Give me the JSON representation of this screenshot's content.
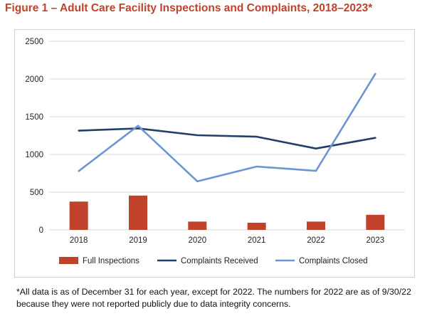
{
  "title": "Figure 1 – Adult Care Facility Inspections and Complaints, 2018–2023*",
  "footnote": "*All data is as of December 31 for each year, except for 2022. The numbers for 2022 are as of 9/30/22 because they were not reported publicly due to data integrity concerns.",
  "chart_data": {
    "type": "bar",
    "categories": [
      "2018",
      "2019",
      "2020",
      "2021",
      "2022",
      "2023"
    ],
    "ylim": [
      0,
      2500
    ],
    "yticks": [
      "0",
      "500",
      "1000",
      "1500",
      "2000",
      "2500"
    ],
    "grid": true,
    "legend_position": "bottom",
    "series": [
      {
        "name": "Full Inspections",
        "type": "bar",
        "color": "#c0422b",
        "values": [
          375,
          455,
          110,
          95,
          110,
          200
        ]
      },
      {
        "name": "Complaints Received",
        "type": "line",
        "color": "#213f6b",
        "values": [
          1315,
          1345,
          1255,
          1235,
          1078,
          1220
        ]
      },
      {
        "name": "Complaints Closed",
        "type": "line",
        "color": "#6b96d2",
        "values": [
          780,
          1380,
          643,
          840,
          782,
          2068
        ]
      }
    ]
  }
}
